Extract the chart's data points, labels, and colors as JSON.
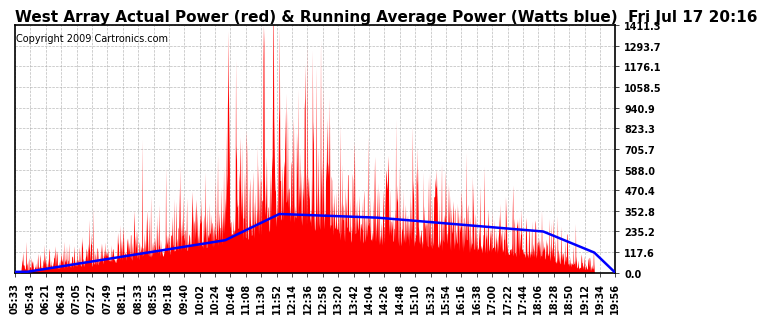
{
  "title": "West Array Actual Power (red) & Running Average Power (Watts blue)  Fri Jul 17 20:16",
  "copyright": "Copyright 2009 Cartronics.com",
  "yticks": [
    0.0,
    117.6,
    235.2,
    352.8,
    470.4,
    588.0,
    705.7,
    823.3,
    940.9,
    1058.5,
    1176.1,
    1293.7,
    1411.3
  ],
  "ylim": [
    0,
    1411.3
  ],
  "xtick_labels": [
    "05:33",
    "05:43",
    "06:21",
    "06:43",
    "07:05",
    "07:27",
    "07:49",
    "08:11",
    "08:33",
    "08:55",
    "09:18",
    "09:40",
    "10:02",
    "10:24",
    "10:46",
    "11:08",
    "11:30",
    "11:52",
    "12:14",
    "12:36",
    "12:58",
    "13:20",
    "13:42",
    "14:04",
    "14:26",
    "14:48",
    "15:10",
    "15:32",
    "15:54",
    "16:16",
    "16:38",
    "17:00",
    "17:22",
    "17:44",
    "18:06",
    "18:28",
    "18:50",
    "19:12",
    "19:34",
    "19:56"
  ],
  "background_color": "#ffffff",
  "plot_bg_color": "#ffffff",
  "grid_color": "#aaaaaa",
  "red_color": "#ff0000",
  "blue_color": "#0000ff",
  "title_fontsize": 11,
  "copyright_fontsize": 7,
  "tick_fontsize": 7,
  "n_points": 1400
}
